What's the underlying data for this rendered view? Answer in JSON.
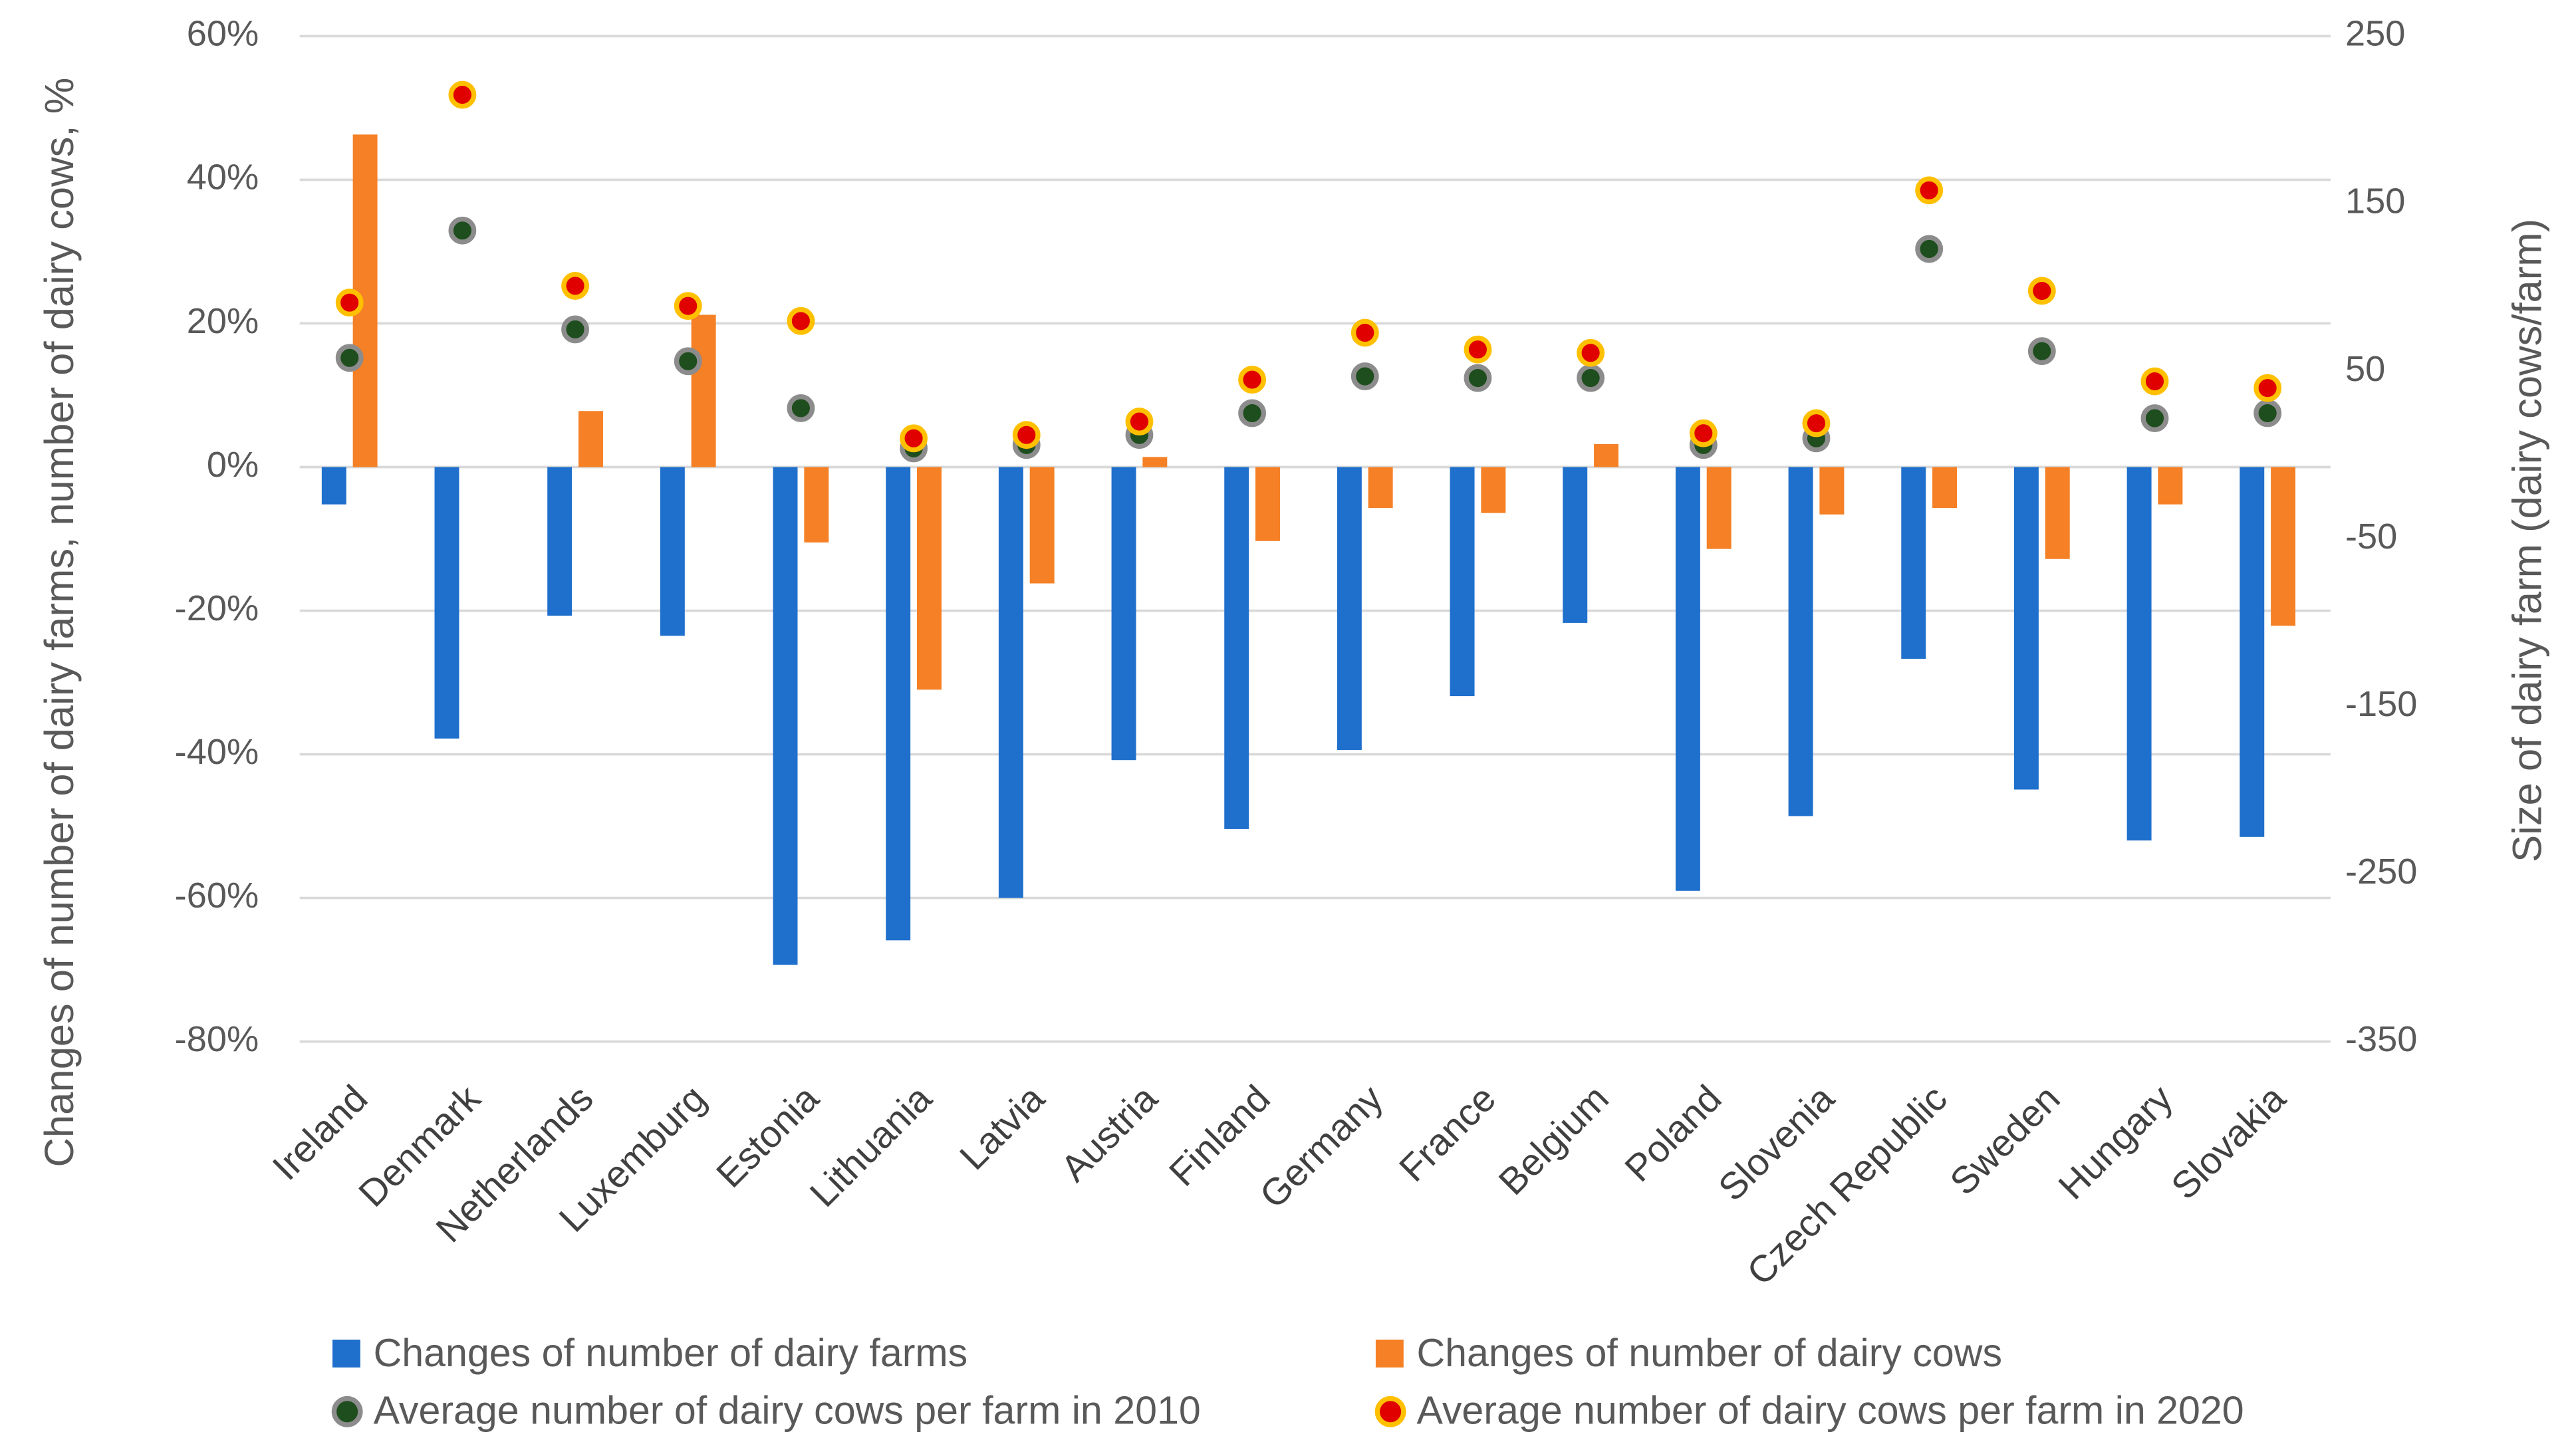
{
  "chart_data": {
    "type": "bar",
    "y_label": "Changes of number of dairy farms, number of dairy cows, %",
    "y2_label": "Size of dairy farm (dairy cows/farm)",
    "categories": [
      "Ireland",
      "Denmark",
      "Netherlands",
      "Luxemburg",
      "Estonia",
      "Lithuania",
      "Latvia",
      "Austria",
      "Finland",
      "Germany",
      "France",
      "Belgium",
      "Poland",
      "Slovenia",
      "Czech Republic",
      "Sweden",
      "Hungary",
      "Slovakia"
    ],
    "series": [
      {
        "name": "Changes of number of dairy farms",
        "type": "bar",
        "color": "#1f6fcc",
        "values": [
          -5.2,
          -37.8,
          -20.7,
          -23.5,
          -69.3,
          -65.9,
          -60,
          -40.8,
          -50.4,
          -39.4,
          -31.9,
          -21.7,
          -59,
          -48.6,
          -26.7,
          -44.9,
          -52,
          -51.5
        ]
      },
      {
        "name": "Changes of number of dairy cows",
        "type": "bar",
        "color": "#f58025",
        "values": [
          46.3,
          0,
          7.8,
          21.2,
          -10.5,
          -31,
          -16.2,
          1.4,
          -10.3,
          -5.7,
          -6.4,
          3.2,
          -11.4,
          -6.6,
          -5.7,
          -12.8,
          -5.2,
          -22.1
        ]
      },
      {
        "name": "Average number of dairy cows per farm in 2010",
        "type": "scatter",
        "axis": "y2",
        "color": "#1e4d1e",
        "edge_color": "#8c8c8c",
        "values": [
          58,
          134,
          75,
          56,
          28,
          4,
          6,
          12,
          25,
          47,
          46,
          46,
          6,
          10,
          123,
          62,
          22,
          25
        ]
      },
      {
        "name": "Average number of dairy cows per farm in 2020",
        "type": "scatter",
        "axis": "y2",
        "color": "#e00000",
        "edge_color": "#ffc000",
        "values": [
          91,
          215,
          101,
          89,
          80,
          10,
          12,
          20,
          45,
          73,
          63,
          61,
          13,
          19,
          158,
          98,
          44,
          40
        ]
      }
    ],
    "ylim": [
      -80,
      60
    ],
    "yticks": [
      {
        "value": -80,
        "label": "-80%"
      },
      {
        "value": -60,
        "label": "-60%"
      },
      {
        "value": -40,
        "label": "-40%"
      },
      {
        "value": -20,
        "label": "-20%"
      },
      {
        "value": 0,
        "label": "0%"
      },
      {
        "value": 20,
        "label": "20%"
      },
      {
        "value": 40,
        "label": "40%"
      },
      {
        "value": 60,
        "label": "60%"
      }
    ],
    "y2lim": [
      -350,
      250
    ],
    "y2ticks": [
      -350,
      -250,
      -150,
      -50,
      50,
      150,
      250
    ],
    "grid": true,
    "legend": "bottom"
  }
}
